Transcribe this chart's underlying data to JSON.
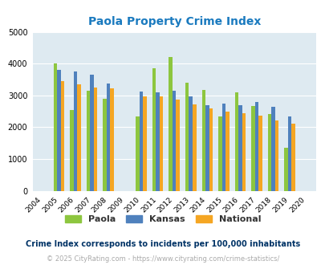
{
  "title": "Paola Property Crime Index",
  "title_color": "#1a7abf",
  "years": [
    2004,
    2005,
    2006,
    2007,
    2008,
    2009,
    2010,
    2011,
    2012,
    2013,
    2014,
    2015,
    2016,
    2017,
    2018,
    2019,
    2020
  ],
  "paola": [
    null,
    4000,
    2550,
    3150,
    2900,
    null,
    2350,
    3850,
    4200,
    3400,
    3180,
    2330,
    3100,
    2670,
    2420,
    1360,
    null
  ],
  "kansas": [
    null,
    3800,
    3750,
    3650,
    3380,
    null,
    3120,
    3100,
    3150,
    2980,
    2700,
    2730,
    2680,
    2800,
    2640,
    2330,
    null
  ],
  "national": [
    null,
    3450,
    3350,
    3250,
    3230,
    null,
    2960,
    2960,
    2880,
    2720,
    2600,
    2490,
    2450,
    2360,
    2200,
    2100,
    null
  ],
  "paola_color": "#8dc63f",
  "kansas_color": "#4f81bd",
  "national_color": "#f5a623",
  "plot_bg_color": "#deeaf1",
  "ylim": [
    0,
    5000
  ],
  "yticks": [
    0,
    1000,
    2000,
    3000,
    4000,
    5000
  ],
  "legend_labels": [
    "Paola",
    "Kansas",
    "National"
  ],
  "footnote1": "Crime Index corresponds to incidents per 100,000 inhabitants",
  "footnote2": "© 2025 CityRating.com - https://www.cityrating.com/crime-statistics/",
  "footnote1_color": "#003366",
  "footnote2_color": "#aaaaaa"
}
